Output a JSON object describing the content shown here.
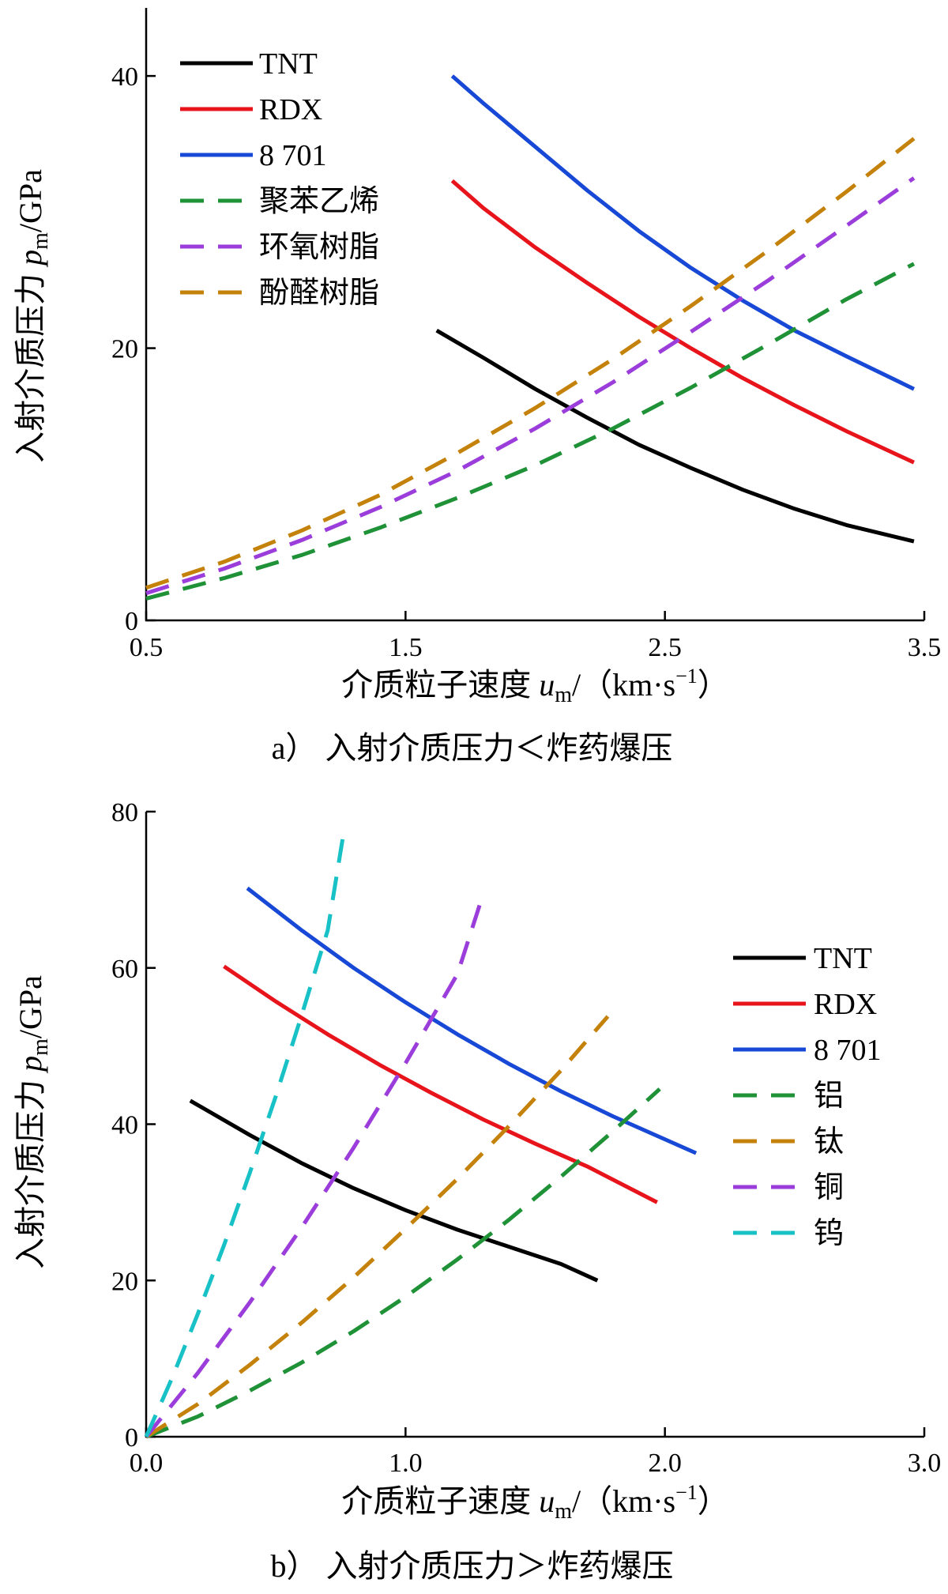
{
  "chart_data": [
    {
      "type": "line",
      "xlabel": "介质粒子速度 u_m/(km·s⁻¹)",
      "xlabel_parts": {
        "prefix": "介质粒子速度 ",
        "var": "u",
        "sub": "m",
        "unit": "/（km·s",
        "sup": "−1",
        "close": "）"
      },
      "ylabel": "入射介质压力 p_m/GPa",
      "ylabel_parts": {
        "prefix": "入射介质压力 ",
        "var": "p",
        "sub": "m",
        "unit": "/GPa"
      },
      "caption": "a） 入射介质压力＜炸药爆压",
      "xlim": [
        0.5,
        3.5
      ],
      "ylim": [
        0,
        45
      ],
      "xticks": [
        0.5,
        1.5,
        2.5,
        3.5
      ],
      "xtick_labels": [
        "0.5",
        "1.5",
        "2.5",
        "3.5"
      ],
      "yticks": [
        0,
        20,
        40
      ],
      "ytick_labels": [
        "0",
        "20",
        "40"
      ],
      "grid": false,
      "legend_position": "top-left",
      "series": [
        {
          "name": "TNT",
          "color": "#000000",
          "dash": false,
          "x": [
            1.62,
            1.8,
            2.0,
            2.2,
            2.4,
            2.6,
            2.8,
            3.0,
            3.2,
            3.46
          ],
          "y": [
            21.3,
            19.3,
            17.0,
            14.9,
            12.9,
            11.2,
            9.6,
            8.2,
            7.0,
            5.8
          ]
        },
        {
          "name": "RDX",
          "color": "#e8141b",
          "dash": false,
          "x": [
            1.68,
            1.8,
            2.0,
            2.2,
            2.4,
            2.6,
            2.8,
            3.0,
            3.2,
            3.46
          ],
          "y": [
            32.3,
            30.3,
            27.4,
            24.8,
            22.3,
            20.0,
            17.8,
            15.8,
            13.9,
            11.6
          ]
        },
        {
          "name": "8 701",
          "color": "#1748d6",
          "dash": false,
          "x": [
            1.68,
            1.8,
            2.0,
            2.2,
            2.4,
            2.6,
            2.8,
            3.0,
            3.2,
            3.46
          ],
          "y": [
            40.0,
            38.0,
            34.8,
            31.6,
            28.6,
            25.9,
            23.5,
            21.3,
            19.4,
            17.0
          ]
        },
        {
          "name": "聚苯乙烯",
          "color": "#1f9137",
          "dash": true,
          "x": [
            0.5,
            0.8,
            1.1,
            1.4,
            1.7,
            2.0,
            2.3,
            2.6,
            2.9,
            3.2,
            3.46
          ],
          "y": [
            1.6,
            3.1,
            4.8,
            6.8,
            9.0,
            11.4,
            14.1,
            17.1,
            20.3,
            23.6,
            26.2
          ]
        },
        {
          "name": "环氧树脂",
          "color": "#9b3ddb",
          "dash": true,
          "x": [
            0.5,
            0.8,
            1.1,
            1.4,
            1.7,
            2.0,
            2.3,
            2.6,
            2.9,
            3.2,
            3.46
          ],
          "y": [
            2.0,
            3.8,
            5.9,
            8.3,
            11.0,
            14.1,
            17.5,
            21.2,
            25.0,
            29.0,
            32.5
          ]
        },
        {
          "name": "酚醛树脂",
          "color": "#c4820b",
          "dash": true,
          "x": [
            0.5,
            0.8,
            1.1,
            1.4,
            1.7,
            2.0,
            2.3,
            2.6,
            2.9,
            3.2,
            3.46
          ],
          "y": [
            2.4,
            4.3,
            6.6,
            9.2,
            12.3,
            15.6,
            19.2,
            23.1,
            27.2,
            31.5,
            35.4
          ]
        }
      ]
    },
    {
      "type": "line",
      "xlabel": "介质粒子速度 u_m/(km·s⁻¹)",
      "xlabel_parts": {
        "prefix": "介质粒子速度 ",
        "var": "u",
        "sub": "m",
        "unit": "/（km·s",
        "sup": "−1",
        "close": "）"
      },
      "ylabel": "入射介质压力 p_m/GPa",
      "ylabel_parts": {
        "prefix": "入射介质压力 ",
        "var": "p",
        "sub": "m",
        "unit": "/GPa"
      },
      "caption": "b） 入射介质压力＞炸药爆压",
      "xlim": [
        0,
        3
      ],
      "ylim": [
        0,
        80
      ],
      "xticks": [
        0,
        1,
        2,
        3
      ],
      "xtick_labels": [
        "0.0",
        "1.0",
        "2.0",
        "3.0"
      ],
      "yticks": [
        0,
        20,
        40,
        60,
        80
      ],
      "ytick_labels": [
        "0",
        "20",
        "40",
        "60",
        "80"
      ],
      "grid": false,
      "legend_position": "right",
      "series": [
        {
          "name": "TNT",
          "color": "#000000",
          "dash": false,
          "x": [
            0.17,
            0.4,
            0.6,
            0.8,
            1.0,
            1.2,
            1.4,
            1.6,
            1.74
          ],
          "y": [
            43.0,
            38.6,
            35.0,
            31.8,
            29.0,
            26.5,
            24.3,
            22.1,
            20.0
          ]
        },
        {
          "name": "RDX",
          "color": "#e8141b",
          "dash": false,
          "x": [
            0.3,
            0.5,
            0.7,
            0.9,
            1.1,
            1.3,
            1.5,
            1.7,
            1.97
          ],
          "y": [
            60.2,
            55.7,
            51.5,
            47.6,
            44.0,
            40.6,
            37.5,
            34.6,
            30.0
          ]
        },
        {
          "name": "8 701",
          "color": "#1748d6",
          "dash": false,
          "x": [
            0.39,
            0.6,
            0.8,
            1.0,
            1.2,
            1.4,
            1.6,
            1.8,
            2.12
          ],
          "y": [
            70.2,
            64.8,
            60.0,
            55.6,
            51.5,
            47.7,
            44.2,
            41.0,
            36.3
          ]
        },
        {
          "name": "铝",
          "color": "#1f9137",
          "dash": true,
          "x": [
            0,
            0.2,
            0.4,
            0.6,
            0.8,
            1.0,
            1.2,
            1.4,
            1.6,
            1.8,
            1.98
          ],
          "y": [
            0,
            2.6,
            5.9,
            9.5,
            13.5,
            17.9,
            22.7,
            27.8,
            33.3,
            39.1,
            44.5
          ]
        },
        {
          "name": "钛",
          "color": "#c4820b",
          "dash": true,
          "x": [
            0,
            0.2,
            0.4,
            0.6,
            0.8,
            1.0,
            1.2,
            1.4,
            1.6,
            1.78
          ],
          "y": [
            0,
            4.2,
            9.2,
            14.6,
            20.4,
            26.6,
            33.0,
            39.8,
            46.9,
            53.8
          ]
        },
        {
          "name": "铜",
          "color": "#9b3ddb",
          "dash": true,
          "x": [
            0,
            0.2,
            0.4,
            0.6,
            0.8,
            1.0,
            1.2,
            1.3
          ],
          "y": [
            0,
            8.2,
            17.2,
            26.8,
            37.0,
            47.8,
            59.2,
            69.5
          ]
        },
        {
          "name": "钨",
          "color": "#17c1c6",
          "dash": true,
          "x": [
            0,
            0.1,
            0.2,
            0.3,
            0.4,
            0.5,
            0.6,
            0.7,
            0.76
          ],
          "y": [
            0,
            7.5,
            15.8,
            24.5,
            33.8,
            43.6,
            54.0,
            64.8,
            77.0
          ]
        }
      ]
    }
  ]
}
